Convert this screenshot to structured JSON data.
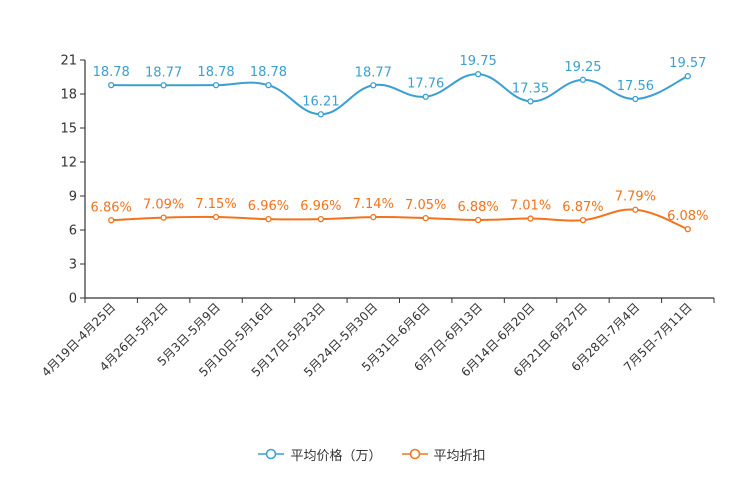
{
  "chart_data": {
    "type": "line",
    "title": "",
    "xlabel": "",
    "ylabel": "",
    "ylim": [
      0,
      21
    ],
    "yticks": [
      0,
      3,
      6,
      9,
      12,
      15,
      18,
      21
    ],
    "grid": false,
    "legend_position": "bottom",
    "categories": [
      "4月19日-4月25日",
      "4月26日-5月2日",
      "5月3日-5月9日",
      "5月10日-5月16日",
      "5月17日-5月23日",
      "5月24日-5月30日",
      "5月31日-6月6日",
      "6月7日-6月13日",
      "6月14日-6月20日",
      "6月21日-6月27日",
      "6月28日-7月4日",
      "7月5日-7月11日"
    ],
    "series": [
      {
        "name": "平均价格（万）",
        "color": "#3a9fd1",
        "values": [
          18.78,
          18.77,
          18.78,
          18.78,
          16.21,
          18.77,
          17.76,
          19.75,
          17.35,
          19.25,
          17.56,
          19.57
        ],
        "labels": [
          "18.78",
          "18.77",
          "18.78",
          "18.78",
          "16.21",
          "18.77",
          "17.76",
          "19.75",
          "17.35",
          "19.25",
          "17.56",
          "19.57"
        ]
      },
      {
        "name": "平均折扣",
        "color": "#f2731b",
        "values": [
          6.86,
          7.09,
          7.15,
          6.96,
          6.96,
          7.14,
          7.05,
          6.88,
          7.01,
          6.87,
          7.79,
          6.08
        ],
        "labels": [
          "6.86%",
          "7.09%",
          "7.15%",
          "6.96%",
          "6.96%",
          "7.14%",
          "7.05%",
          "6.88%",
          "7.01%",
          "6.87%",
          "7.79%",
          "6.08%"
        ]
      }
    ]
  }
}
